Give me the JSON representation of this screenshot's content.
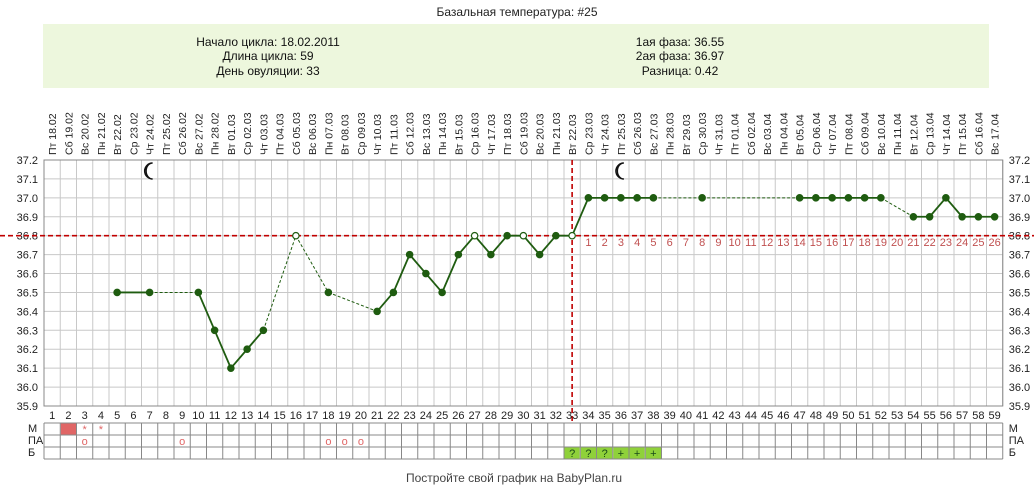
{
  "title": "Базальная температура: #25",
  "info": {
    "cycle_start": "Начало цикла: 18.02.2011",
    "cycle_length": "Длина цикла: 59",
    "ovulation_day": "День овуляции: 33",
    "phase1": "1ая фаза: 36.55",
    "phase2": "2ая фаза: 36.97",
    "difference": "Разница: 0.42"
  },
  "footer": "Постройте свой график на BabyPlan.ru",
  "colors": {
    "info_bg": "#edf7dd",
    "line": "#1f5c10",
    "point": "#1f5c10",
    "coverline": "#c00000",
    "grid": "#c8c8c8",
    "phase2_numbers": "#c05050",
    "menstruation": "#e06666",
    "green_cell": "#8fd13a"
  },
  "icons": {
    "moon1": "crescent-moon-icon",
    "moon2": "crescent-moon-icon"
  },
  "chart_data": {
    "type": "line",
    "y_ticks": [
      "35.9",
      "36.0",
      "36.1",
      "36.2",
      "36.3",
      "36.4",
      "36.5",
      "36.6",
      "36.7",
      "36.8",
      "36.9",
      "37.0",
      "37.1",
      "37.2"
    ],
    "ylim": [
      35.9,
      37.2
    ],
    "coverline": 36.8,
    "ovulation_day": 33,
    "moon_days": [
      7,
      36
    ],
    "day_numbers": [
      1,
      2,
      3,
      4,
      5,
      6,
      7,
      8,
      9,
      10,
      11,
      12,
      13,
      14,
      15,
      16,
      17,
      18,
      19,
      20,
      21,
      22,
      23,
      24,
      25,
      26,
      27,
      28,
      29,
      30,
      31,
      32,
      33,
      34,
      35,
      36,
      37,
      38,
      39,
      40,
      41,
      42,
      43,
      44,
      45,
      46,
      47,
      48,
      49,
      50,
      51,
      52,
      53,
      54,
      55,
      56,
      57,
      58,
      59
    ],
    "dates": [
      "Пт 18.02",
      "Сб 19.02",
      "Вс 20.02",
      "Пн 21.02",
      "Вт 22.02",
      "Ср 23.02",
      "Чт 24.02",
      "Пт 25.02",
      "Сб 26.02",
      "Вс 27.02",
      "Пн 28.02",
      "Вт 01.03",
      "Ср 02.03",
      "Чт 03.03",
      "Пт 04.03",
      "Сб 05.03",
      "Вс 06.03",
      "Пн 07.03",
      "Вт 08.03",
      "Ср 09.03",
      "Чт 10.03",
      "Пт 11.03",
      "Сб 12.03",
      "Вс 13.03",
      "Пн 14.03",
      "Вт 15.03",
      "Ср 16.03",
      "Чт 17.03",
      "Пт 18.03",
      "Сб 19.03",
      "Вс 20.03",
      "Пн 21.03",
      "Вт 22.03",
      "Ср 23.03",
      "Чт 24.03",
      "Пт 25.03",
      "Сб 26.03",
      "Вс 27.03",
      "Пн 28.03",
      "Вт 29.03",
      "Ср 30.03",
      "Чт 31.03",
      "Пт 01.04",
      "Сб 02.04",
      "Вс 03.04",
      "Пн 04.04",
      "Вт 05.04",
      "Ср 06.04",
      "Чт 07.04",
      "Пт 08.04",
      "Сб 09.04",
      "Вс 10.04",
      "Пн 11.04",
      "Вт 12.04",
      "Ср 13.04",
      "Чт 14.04",
      "Пт 15.04",
      "Сб 16.04",
      "Вс 17.04"
    ],
    "temperatures": [
      null,
      null,
      null,
      null,
      36.5,
      null,
      36.5,
      null,
      null,
      36.5,
      36.3,
      36.1,
      36.2,
      36.3,
      null,
      36.8,
      null,
      36.5,
      null,
      null,
      36.4,
      36.5,
      36.7,
      36.6,
      36.5,
      36.7,
      36.8,
      36.7,
      36.8,
      36.8,
      36.7,
      36.8,
      36.8,
      37.0,
      37.0,
      37.0,
      37.0,
      37.0,
      null,
      null,
      37.0,
      null,
      null,
      null,
      null,
      null,
      37.0,
      37.0,
      37.0,
      37.0,
      37.0,
      37.0,
      null,
      36.9,
      36.9,
      37.0,
      36.9,
      36.9,
      36.9
    ],
    "open_points": [
      16,
      27,
      30,
      33
    ],
    "dashed_segments": [
      [
        7,
        10
      ],
      [
        14,
        16
      ],
      [
        16,
        18
      ],
      [
        18,
        21
      ],
      [
        38,
        41
      ],
      [
        41,
        47
      ],
      [
        52,
        54
      ]
    ],
    "phase2_numbers": [
      "1",
      "2",
      "3",
      "4",
      "5",
      "6",
      "7",
      "8",
      "9",
      "10",
      "11",
      "12",
      "13",
      "14",
      "15",
      "16",
      "17",
      "18",
      "19",
      "20",
      "21",
      "22",
      "23",
      "24",
      "25",
      "26"
    ],
    "row_labels": [
      "М",
      "ПА",
      "Б"
    ],
    "menstruation": [
      {
        "day": 2,
        "mark": ""
      },
      {
        "day": 3,
        "mark": "*"
      },
      {
        "day": 4,
        "mark": "*"
      }
    ],
    "pa": [
      {
        "day": 3,
        "mark": "o"
      },
      {
        "day": 9,
        "mark": "o"
      },
      {
        "day": 18,
        "mark": "o"
      },
      {
        "day": 19,
        "mark": "o"
      },
      {
        "day": 20,
        "mark": "o"
      }
    ],
    "b": [
      {
        "day": 33,
        "mark": "?"
      },
      {
        "day": 34,
        "mark": "?"
      },
      {
        "day": 35,
        "mark": "?"
      },
      {
        "day": 36,
        "mark": "+"
      },
      {
        "day": 37,
        "mark": "+"
      },
      {
        "day": 38,
        "mark": "+"
      }
    ]
  }
}
